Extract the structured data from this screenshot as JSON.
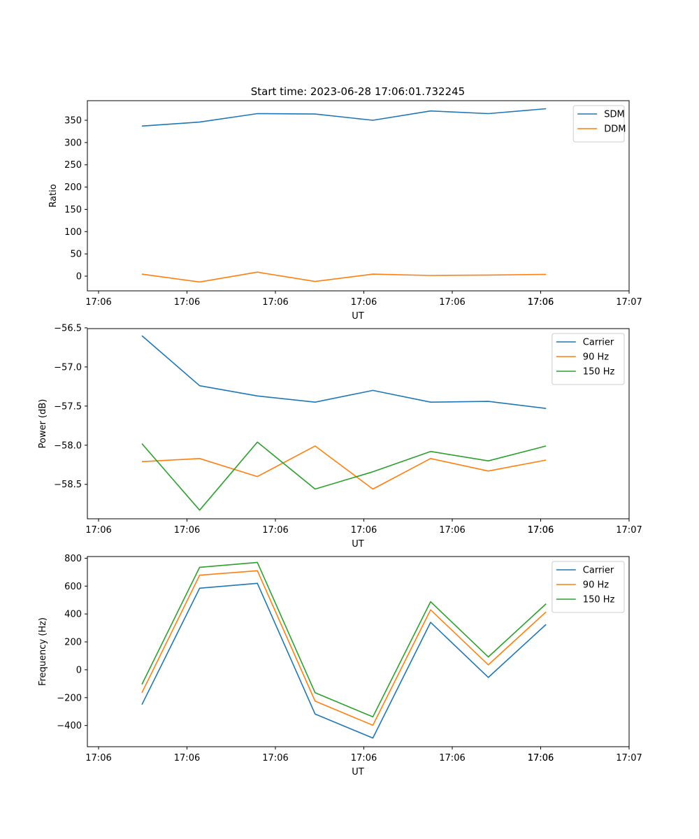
{
  "figure": {
    "title": "Start time: 2023-06-28 17:06:01.732245"
  },
  "chart_data": [
    {
      "type": "line",
      "ylabel": "Ratio",
      "xlabel": "UT",
      "x_tick_labels": [
        "17:06",
        "17:06",
        "17:06",
        "17:06",
        "17:06",
        "17:06",
        "17:06",
        "17:07"
      ],
      "y_ticks": [
        0,
        50,
        100,
        150,
        200,
        250,
        300,
        350
      ],
      "y_tick_labels": [
        "0",
        "50",
        "100",
        "150",
        "200",
        "250",
        "300",
        "350"
      ],
      "ylim": [
        -33,
        394
      ],
      "grid": false,
      "legend_position": "top-right",
      "series": [
        {
          "name": "SDM",
          "color": "#1f77b4",
          "values": [
            337,
            346,
            365,
            364,
            350,
            371,
            365,
            376
          ]
        },
        {
          "name": "DDM",
          "color": "#ff7f0e",
          "values": [
            4.5,
            -13,
            9,
            -12,
            4.5,
            1.5,
            2.5,
            4
          ]
        }
      ]
    },
    {
      "type": "line",
      "ylabel": "Power (dB)",
      "xlabel": "UT",
      "x_tick_labels": [
        "17:06",
        "17:06",
        "17:06",
        "17:06",
        "17:06",
        "17:06",
        "17:06",
        "17:07"
      ],
      "y_ticks": [
        -56.5,
        -57.0,
        -57.5,
        -58.0,
        -58.5
      ],
      "y_tick_labels": [
        "−56.5",
        "−57.0",
        "−57.5",
        "−58.0",
        "−58.5"
      ],
      "ylim": [
        -58.94,
        -56.51
      ],
      "grid": false,
      "legend_position": "top-right",
      "series": [
        {
          "name": "Carrier",
          "color": "#1f77b4",
          "values": [
            -56.6,
            -57.24,
            -57.37,
            -57.45,
            -57.3,
            -57.45,
            -57.44,
            -57.53
          ]
        },
        {
          "name": "90 Hz",
          "color": "#ff7f0e",
          "values": [
            -58.21,
            -58.17,
            -58.4,
            -58.01,
            -58.56,
            -58.17,
            -58.33,
            -58.19
          ]
        },
        {
          "name": "150 Hz",
          "color": "#2ca02c",
          "values": [
            -57.98,
            -58.83,
            -57.96,
            -58.56,
            -58.34,
            -58.08,
            -58.2,
            -58.01
          ]
        }
      ]
    },
    {
      "type": "line",
      "ylabel": "Frequency (Hz)",
      "xlabel": "UT",
      "x_tick_labels": [
        "17:06",
        "17:06",
        "17:06",
        "17:06",
        "17:06",
        "17:06",
        "17:06",
        "17:07"
      ],
      "y_ticks": [
        -400,
        -200,
        0,
        200,
        400,
        600,
        800
      ],
      "y_tick_labels": [
        "−400",
        "−200",
        "0",
        "200",
        "400",
        "600",
        "800"
      ],
      "ylim": [
        -552,
        812
      ],
      "grid": false,
      "legend_position": "top-right",
      "series": [
        {
          "name": "Carrier",
          "color": "#1f77b4",
          "values": [
            -250,
            585,
            620,
            -318,
            -490,
            340,
            -55,
            325
          ]
        },
        {
          "name": "90 Hz",
          "color": "#ff7f0e",
          "values": [
            -165,
            678,
            710,
            -225,
            -398,
            430,
            35,
            415
          ]
        },
        {
          "name": "150 Hz",
          "color": "#2ca02c",
          "values": [
            -105,
            735,
            770,
            -165,
            -338,
            488,
            92,
            473
          ]
        }
      ]
    }
  ]
}
